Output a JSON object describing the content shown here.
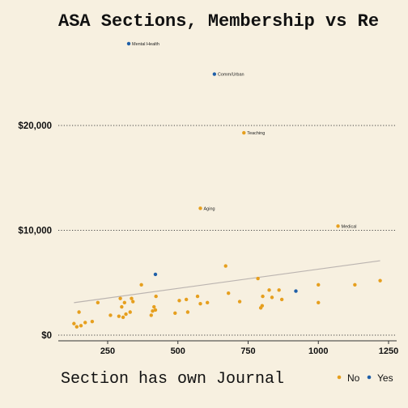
{
  "chart_data": {
    "type": "scatter",
    "title": "ASA Sections, Membership vs Re",
    "xlabel": "",
    "ylabel": "",
    "x_ticks": [
      250,
      500,
      750,
      1000,
      1250
    ],
    "x_tick_labels": [
      "250",
      "500",
      "750",
      "1000",
      "1250"
    ],
    "y_ticks": [
      0,
      10000,
      20000
    ],
    "y_tick_labels": [
      "$0",
      "$10,000",
      "$20,000"
    ],
    "xlim": [
      60,
      1300
    ],
    "ylim": [
      -500,
      30000
    ],
    "grid": "horizontal dotted",
    "legend": {
      "title": "Section has own Journal",
      "placement": "bottom",
      "entries": [
        {
          "name": "No",
          "color": "#e69f1e"
        },
        {
          "name": "Yes",
          "color": "#1f5fa8"
        }
      ]
    },
    "colors": {
      "No": "#e69f1e",
      "Yes": "#1f5fa8",
      "trend": "#bbb4b0",
      "grid": "#444444"
    },
    "trend_line": {
      "x": [
        130,
        1220
      ],
      "y": [
        3100,
        7100
      ]
    },
    "labeled_points": [
      {
        "x": 325,
        "y": 27800,
        "journal": "Yes",
        "label": "Mental Health"
      },
      {
        "x": 630,
        "y": 24900,
        "journal": "Yes",
        "label": "Comm/Urban"
      },
      {
        "x": 735,
        "y": 19300,
        "journal": "No",
        "label": "Teaching"
      },
      {
        "x": 580,
        "y": 12100,
        "journal": "No",
        "label": "Aging"
      },
      {
        "x": 1070,
        "y": 10400,
        "journal": "No",
        "label": "Medical"
      }
    ],
    "points": [
      {
        "x": 130,
        "y": 1100,
        "journal": "No"
      },
      {
        "x": 140,
        "y": 800,
        "journal": "No"
      },
      {
        "x": 148,
        "y": 2200,
        "journal": "No"
      },
      {
        "x": 155,
        "y": 900,
        "journal": "No"
      },
      {
        "x": 170,
        "y": 1200,
        "journal": "No"
      },
      {
        "x": 195,
        "y": 1300,
        "journal": "No"
      },
      {
        "x": 215,
        "y": 3100,
        "journal": "No"
      },
      {
        "x": 260,
        "y": 1900,
        "journal": "No"
      },
      {
        "x": 290,
        "y": 1800,
        "journal": "No"
      },
      {
        "x": 295,
        "y": 3500,
        "journal": "No"
      },
      {
        "x": 300,
        "y": 2700,
        "journal": "No"
      },
      {
        "x": 305,
        "y": 1700,
        "journal": "No"
      },
      {
        "x": 310,
        "y": 3100,
        "journal": "No"
      },
      {
        "x": 315,
        "y": 2000,
        "journal": "No"
      },
      {
        "x": 330,
        "y": 2200,
        "journal": "No"
      },
      {
        "x": 335,
        "y": 3500,
        "journal": "No"
      },
      {
        "x": 340,
        "y": 3200,
        "journal": "No"
      },
      {
        "x": 370,
        "y": 4800,
        "journal": "No"
      },
      {
        "x": 405,
        "y": 1900,
        "journal": "No"
      },
      {
        "x": 410,
        "y": 2300,
        "journal": "No"
      },
      {
        "x": 415,
        "y": 2700,
        "journal": "No"
      },
      {
        "x": 420,
        "y": 2400,
        "journal": "No"
      },
      {
        "x": 420,
        "y": 5800,
        "journal": "Yes"
      },
      {
        "x": 422,
        "y": 3700,
        "journal": "No"
      },
      {
        "x": 490,
        "y": 2100,
        "journal": "No"
      },
      {
        "x": 505,
        "y": 3300,
        "journal": "No"
      },
      {
        "x": 530,
        "y": 3400,
        "journal": "No"
      },
      {
        "x": 535,
        "y": 2200,
        "journal": "No"
      },
      {
        "x": 570,
        "y": 3700,
        "journal": "No"
      },
      {
        "x": 580,
        "y": 3000,
        "journal": "No"
      },
      {
        "x": 605,
        "y": 3100,
        "journal": "No"
      },
      {
        "x": 670,
        "y": 6600,
        "journal": "No"
      },
      {
        "x": 680,
        "y": 4000,
        "journal": "No"
      },
      {
        "x": 720,
        "y": 3200,
        "journal": "No"
      },
      {
        "x": 785,
        "y": 5400,
        "journal": "No"
      },
      {
        "x": 795,
        "y": 2600,
        "journal": "No"
      },
      {
        "x": 800,
        "y": 2800,
        "journal": "No"
      },
      {
        "x": 802,
        "y": 3700,
        "journal": "No"
      },
      {
        "x": 825,
        "y": 4300,
        "journal": "No"
      },
      {
        "x": 835,
        "y": 3600,
        "journal": "No"
      },
      {
        "x": 860,
        "y": 4300,
        "journal": "No"
      },
      {
        "x": 870,
        "y": 3400,
        "journal": "No"
      },
      {
        "x": 920,
        "y": 4200,
        "journal": "Yes"
      },
      {
        "x": 1000,
        "y": 4800,
        "journal": "No"
      },
      {
        "x": 1000,
        "y": 3100,
        "journal": "No"
      },
      {
        "x": 1130,
        "y": 4800,
        "journal": "No"
      },
      {
        "x": 1220,
        "y": 5200,
        "journal": "No"
      }
    ]
  }
}
